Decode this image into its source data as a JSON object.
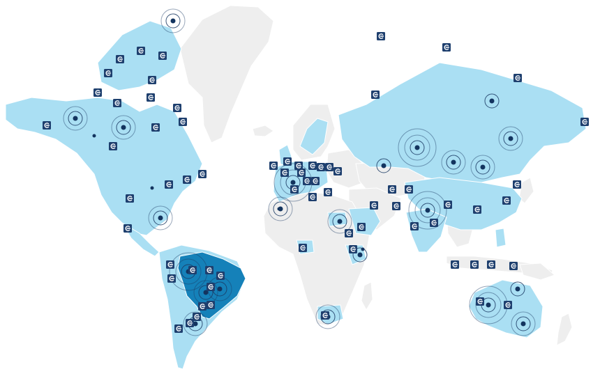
{
  "colors": {
    "inactive_country": "#eeeeee",
    "active_country": "#aadff3",
    "highlight_country": "#1581b9",
    "marker": "#1e3f6e",
    "ring": "#1b3a63",
    "background": "#ffffff"
  },
  "icons": {
    "location_badge": "cloud-region-icon",
    "activity_marker": "pulse-ring-icon"
  }
}
